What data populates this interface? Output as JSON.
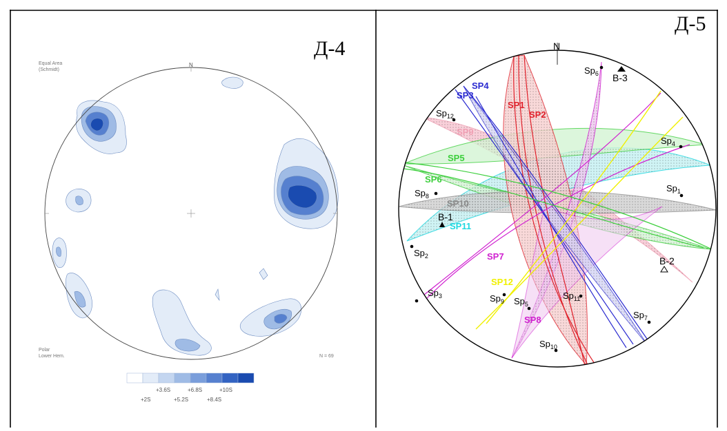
{
  "left_panel": {
    "label": "Д-4",
    "projection_line1": "Equal Area",
    "projection_line2": "(Schmidt)",
    "north": "N",
    "plot_line1": "Polar",
    "plot_line2": "Lower Hem.",
    "count": "N = 69",
    "legend_top": [
      "+3.6S",
      "+6.8S",
      "+10S"
    ],
    "legend_bottom": [
      "+2S",
      "+5.2S",
      "+8.4S"
    ],
    "legend_colors": [
      "#ffffff",
      "#e3ecf8",
      "#c4d6f0",
      "#9fbbe5",
      "#7a9edb",
      "#5680cf",
      "#3363c2",
      "#1a4bb0"
    ]
  },
  "right_panel": {
    "label": "Д-5",
    "north": "N",
    "planes": [
      {
        "name": "SP1",
        "color": "#e0202a"
      },
      {
        "name": "SP2",
        "color": "#e0202a"
      },
      {
        "name": "SP3",
        "color": "#2a2ad0"
      },
      {
        "name": "SP4",
        "color": "#2a2ad0"
      },
      {
        "name": "SP5",
        "color": "#3ccf3c"
      },
      {
        "name": "SP6",
        "color": "#3ccf3c"
      },
      {
        "name": "SP7",
        "color": "#d020d0"
      },
      {
        "name": "SP8",
        "color": "#d020d0"
      },
      {
        "name": "SP9",
        "color": "#f0a0b4"
      },
      {
        "name": "SP10",
        "color": "#8a8a8a"
      },
      {
        "name": "SP11",
        "color": "#20d8e0"
      },
      {
        "name": "SP12",
        "color": "#f0f000"
      }
    ],
    "points": [
      {
        "label": "Sp",
        "sub": "1"
      },
      {
        "label": "Sp",
        "sub": "2"
      },
      {
        "label": "Sp",
        "sub": "3"
      },
      {
        "label": "Sp",
        "sub": "4"
      },
      {
        "label": "Sp",
        "sub": "5"
      },
      {
        "label": "Sp",
        "sub": "6"
      },
      {
        "label": "Sp",
        "sub": "7"
      },
      {
        "label": "Sp",
        "sub": "8"
      },
      {
        "label": "Sp",
        "sub": "9"
      },
      {
        "label": "Sp",
        "sub": "10"
      },
      {
        "label": "Sp",
        "sub": "11"
      },
      {
        "label": "Sp",
        "sub": "12"
      }
    ],
    "boreholes": [
      "B-1",
      "B-2",
      "B-3"
    ]
  }
}
